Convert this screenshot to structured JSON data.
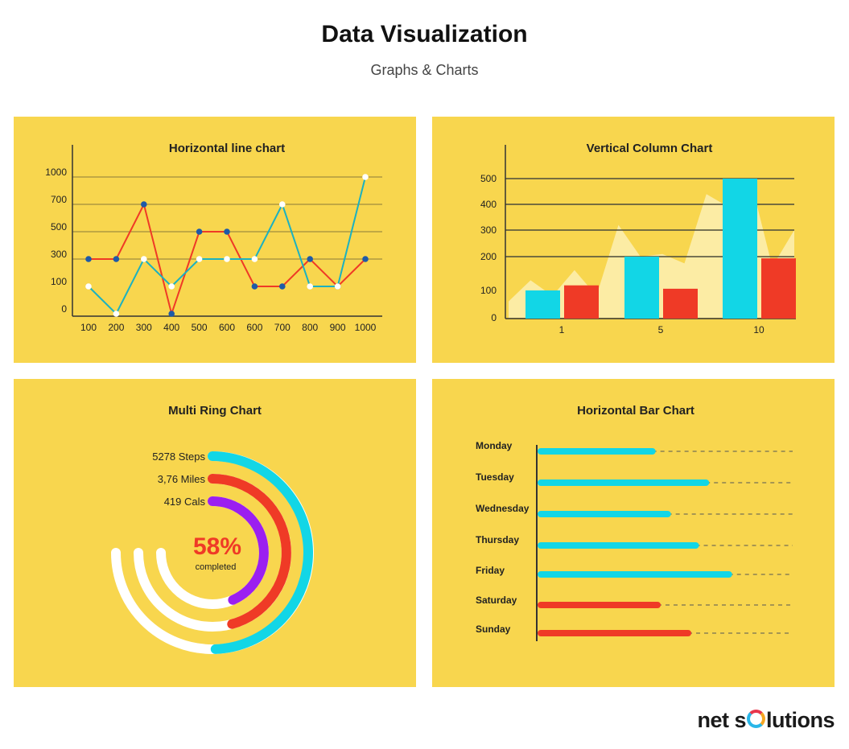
{
  "header": {
    "title": "Data Visualization",
    "subtitle": "Graphs & Charts"
  },
  "brand": {
    "name_part1": "net s",
    "name_part2": "lutions"
  },
  "colors": {
    "panel": "#f8d64e",
    "cyan": "#12d6e6",
    "teal": "#1bb1c1",
    "red": "#ef3a26",
    "purple": "#9b1ff0",
    "navy": "#1e5aa8",
    "white": "#ffffff"
  },
  "chart_data": [
    {
      "type": "line",
      "title": "Horizontal line chart",
      "x": [
        "100",
        "200",
        "300",
        "400",
        "500",
        "600",
        "600",
        "700",
        "800",
        "900",
        "1000"
      ],
      "y_ticks": [
        "1000",
        "700",
        "500",
        "300",
        "100",
        "0"
      ],
      "ylim": [
        0,
        1000
      ],
      "grid": true,
      "series": [
        {
          "color": "#ef3a26",
          "marker_color": "#1e5aa8",
          "values": [
            300,
            300,
            700,
            0,
            500,
            500,
            100,
            100,
            300,
            100,
            300
          ]
        },
        {
          "color": "#1bb1c1",
          "marker_color": "#ffffff",
          "values": [
            100,
            0,
            300,
            100,
            300,
            300,
            300,
            700,
            100,
            100,
            1000
          ]
        }
      ]
    },
    {
      "type": "bar",
      "title": "Vertical Column Chart",
      "categories": [
        "1",
        "5",
        "10"
      ],
      "y_ticks": [
        "500",
        "400",
        "300",
        "200",
        "100",
        "0"
      ],
      "ylim": [
        0,
        500
      ],
      "grid": true,
      "series": [
        {
          "color": "#12d6e6",
          "values": [
            100,
            200,
            500
          ]
        },
        {
          "color": "#ef3a26",
          "values": [
            115,
            105,
            195
          ]
        }
      ],
      "background_area": {
        "color": "#fdf3c2",
        "values": [
          60,
          130,
          80,
          160,
          80,
          320,
          200,
          210,
          180,
          440,
          390,
          500,
          170,
          300
        ]
      }
    },
    {
      "type": "ring",
      "title": "Multi Ring Chart",
      "center_value": "58%",
      "center_label": "completed",
      "rings": [
        {
          "label": "5278 Steps",
          "color": "#12d6e6",
          "fraction": 0.66
        },
        {
          "label": "3,76  Miles",
          "color": "#ef3a26",
          "fraction": 0.61
        },
        {
          "label": "419  Cals",
          "color": "#9b1ff0",
          "fraction": 0.58
        }
      ]
    },
    {
      "type": "bar",
      "orientation": "horizontal",
      "title": "Horizontal Bar Chart",
      "categories": [
        "Monday",
        "Tuesday",
        "Wednesday",
        "Thursday",
        "Friday",
        "Saturday",
        "Sunday"
      ],
      "values": [
        45,
        66,
        51,
        62,
        75,
        47,
        59
      ],
      "xlim": [
        0,
        100
      ],
      "colors": [
        "#12d6e6",
        "#12d6e6",
        "#12d6e6",
        "#12d6e6",
        "#12d6e6",
        "#ef3a26",
        "#ef3a26"
      ]
    }
  ]
}
